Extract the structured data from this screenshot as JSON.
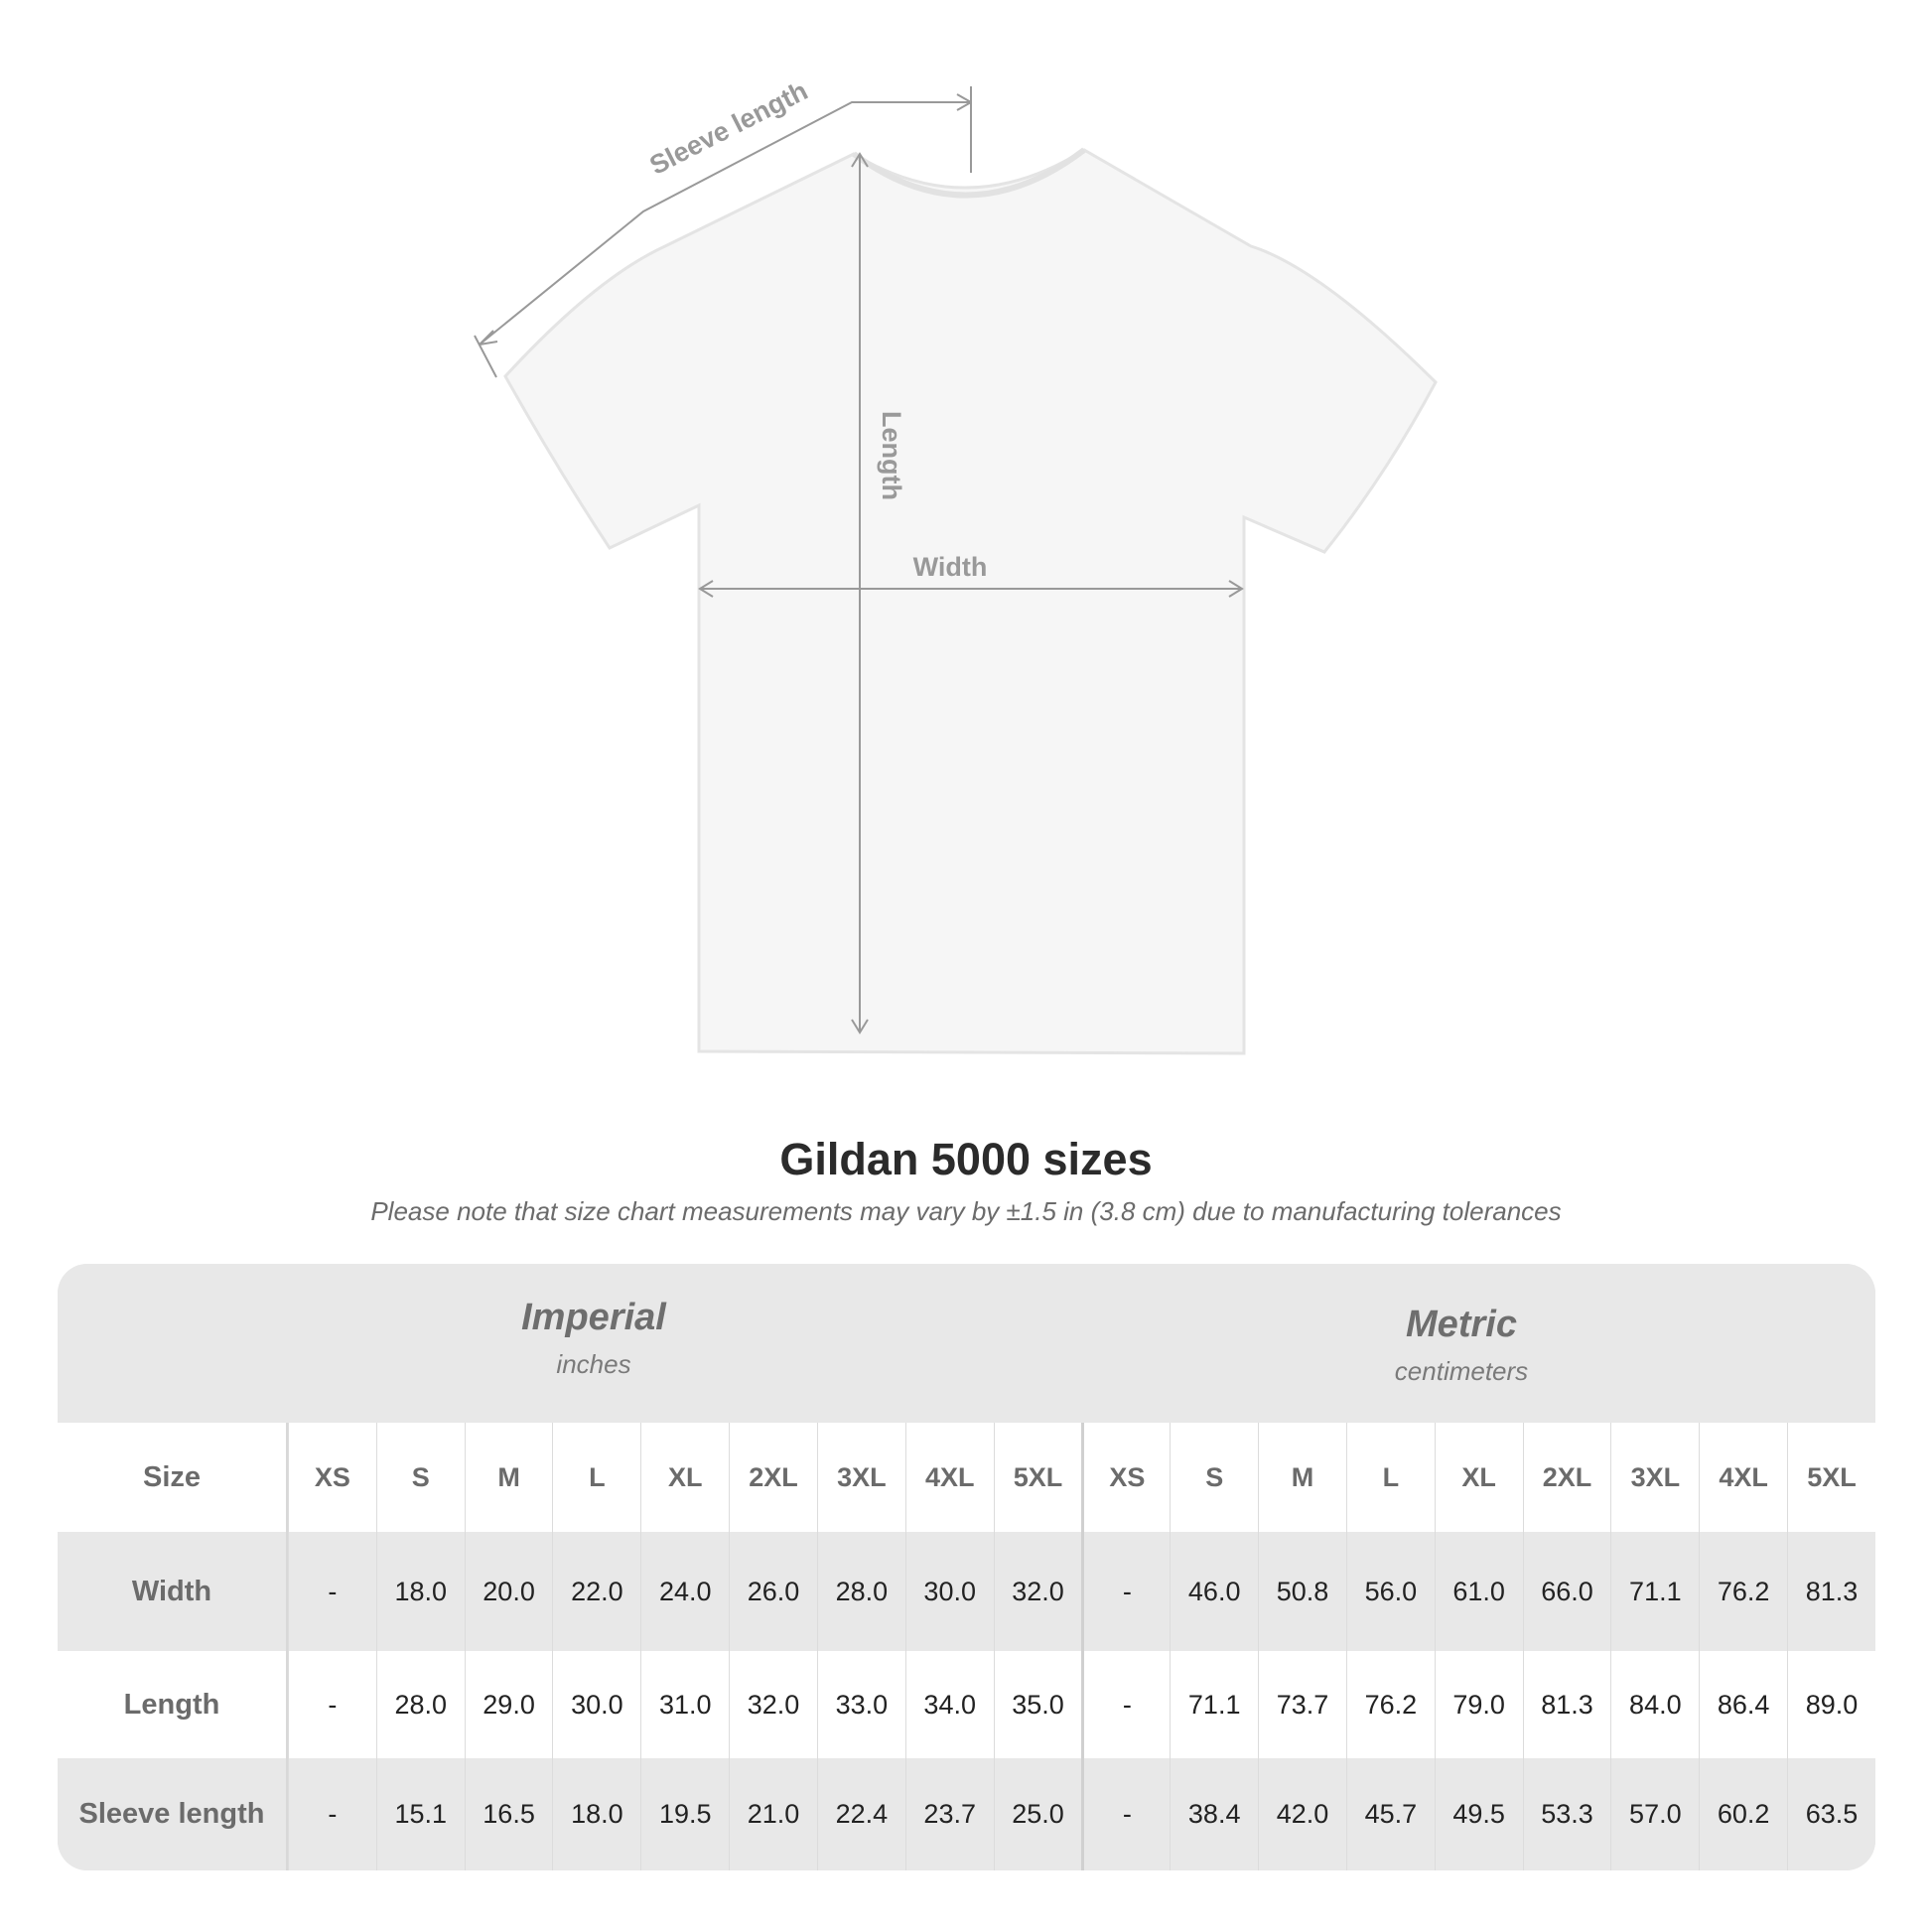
{
  "diagram": {
    "labels": {
      "sleeve": "Sleeve length",
      "length": "Length",
      "width": "Width"
    }
  },
  "title": "Gildan 5000 sizes",
  "note": "Please note that size chart measurements may vary by ±1.5 in (3.8 cm) due to manufacturing tolerances",
  "table": {
    "imperial": {
      "title": "Imperial",
      "unit": "inches"
    },
    "metric": {
      "title": "Metric",
      "unit": "centimeters"
    },
    "size_label": "Size",
    "sizes": [
      "XS",
      "S",
      "M",
      "L",
      "XL",
      "2XL",
      "3XL",
      "4XL",
      "5XL"
    ],
    "rows": [
      {
        "label": "Width",
        "imperial": [
          "-",
          "18.0",
          "20.0",
          "22.0",
          "24.0",
          "26.0",
          "28.0",
          "30.0",
          "32.0"
        ],
        "metric": [
          "-",
          "46.0",
          "50.8",
          "56.0",
          "61.0",
          "66.0",
          "71.1",
          "76.2",
          "81.3"
        ]
      },
      {
        "label": "Length",
        "imperial": [
          "-",
          "28.0",
          "29.0",
          "30.0",
          "31.0",
          "32.0",
          "33.0",
          "34.0",
          "35.0"
        ],
        "metric": [
          "-",
          "71.1",
          "73.7",
          "76.2",
          "79.0",
          "81.3",
          "84.0",
          "86.4",
          "89.0"
        ]
      },
      {
        "label": "Sleeve length",
        "imperial": [
          "-",
          "15.1",
          "16.5",
          "18.0",
          "19.5",
          "21.0",
          "22.4",
          "23.7",
          "25.0"
        ],
        "metric": [
          "-",
          "38.4",
          "42.0",
          "45.7",
          "49.5",
          "53.3",
          "57.0",
          "60.2",
          "63.5"
        ]
      }
    ]
  },
  "colors": {
    "band": "#e8e8e8",
    "label_text": "#6b6b6b",
    "measure_line": "#999999"
  }
}
